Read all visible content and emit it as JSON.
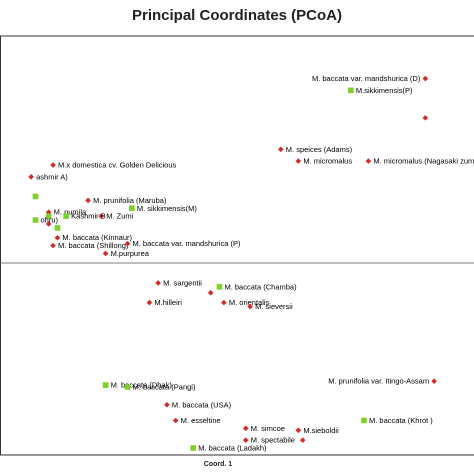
{
  "chart_data": {
    "type": "scatter",
    "title": "Principal Coordinates (PCoA)",
    "xlabel": "Coord. 1",
    "ylabel": "",
    "xlim": [
      -0.5,
      0.5
    ],
    "ylim": [
      -0.5,
      0.5
    ],
    "grid": false,
    "legend": "none",
    "colors": {
      "diamond": "#d42a2a",
      "square": "#7dd12a",
      "axis": "#555555",
      "frame": "#333333"
    },
    "points": [
      {
        "x": 0.43,
        "y": 0.44,
        "marker": "diamond",
        "label": "M. baccata var. mandshurica (D)"
      },
      {
        "x": 0.26,
        "y": 0.41,
        "marker": "square",
        "label": "M.sikkimensis(P)"
      },
      {
        "x": 0.43,
        "y": 0.34,
        "marker": "diamond",
        "label": ""
      },
      {
        "x": 0.1,
        "y": 0.26,
        "marker": "diamond",
        "label": "M. speices (Adams)"
      },
      {
        "x": 0.14,
        "y": 0.23,
        "marker": "diamond",
        "label": "M. micromalus"
      },
      {
        "x": 0.3,
        "y": 0.23,
        "marker": "diamond",
        "label": "M. micromalus (Nagasaki zumi)"
      },
      {
        "x": -0.42,
        "y": 0.22,
        "marker": "diamond",
        "label": "M.x domestica cv. Golden Delicious"
      },
      {
        "x": -0.47,
        "y": 0.19,
        "marker": "diamond",
        "label": "ashmir A)"
      },
      {
        "x": -0.46,
        "y": 0.14,
        "marker": "square",
        "label": ""
      },
      {
        "x": -0.34,
        "y": 0.13,
        "marker": "diamond",
        "label": "M. prunifolia (Maruba)"
      },
      {
        "x": -0.24,
        "y": 0.11,
        "marker": "square",
        "label": "M. sikkimensis(M)"
      },
      {
        "x": -0.31,
        "y": 0.09,
        "marker": "diamond",
        "label": "M. Zumi"
      },
      {
        "x": -0.43,
        "y": 0.1,
        "marker": "diamond",
        "label": "M. pumila"
      },
      {
        "x": -0.43,
        "y": 0.09,
        "marker": "square",
        "label": ""
      },
      {
        "x": -0.39,
        "y": 0.09,
        "marker": "square",
        "label": "Kashmir B"
      },
      {
        "x": -0.46,
        "y": 0.08,
        "marker": "square",
        "label": "ohru)"
      },
      {
        "x": -0.43,
        "y": 0.07,
        "marker": "diamond",
        "label": ""
      },
      {
        "x": -0.41,
        "y": 0.06,
        "marker": "square",
        "label": ""
      },
      {
        "x": -0.41,
        "y": 0.035,
        "marker": "diamond",
        "label": "M. baccata (Kinnaur)"
      },
      {
        "x": -0.42,
        "y": 0.015,
        "marker": "diamond",
        "label": "M. baccata (Shillong)"
      },
      {
        "x": -0.25,
        "y": 0.02,
        "marker": "diamond",
        "label": "M. baccata var. mandshurica (P)"
      },
      {
        "x": -0.3,
        "y": -0.005,
        "marker": "diamond",
        "label": "M.purpurea"
      },
      {
        "x": -0.18,
        "y": -0.08,
        "marker": "diamond",
        "label": "M. sargentii"
      },
      {
        "x": -0.04,
        "y": -0.09,
        "marker": "square",
        "label": "M. baccata (Chamba)"
      },
      {
        "x": -0.06,
        "y": -0.105,
        "marker": "diamond",
        "label": ""
      },
      {
        "x": -0.2,
        "y": -0.13,
        "marker": "diamond",
        "label": "M.hilleiri"
      },
      {
        "x": -0.03,
        "y": -0.13,
        "marker": "diamond",
        "label": "M. orientalis"
      },
      {
        "x": 0.03,
        "y": -0.14,
        "marker": "diamond",
        "label": "M. sieversii"
      },
      {
        "x": -0.3,
        "y": -0.34,
        "marker": "square",
        "label": "M. baccata (Dhak)"
      },
      {
        "x": -0.25,
        "y": -0.345,
        "marker": "square",
        "label": "M. baccata (Pangi)"
      },
      {
        "x": -0.16,
        "y": -0.39,
        "marker": "diamond",
        "label": "M. baccata (USA)"
      },
      {
        "x": 0.45,
        "y": -0.33,
        "marker": "diamond",
        "label": "M. prunifolia var. Itingo-Assam"
      },
      {
        "x": -0.14,
        "y": -0.43,
        "marker": "diamond",
        "label": "M. esseltine"
      },
      {
        "x": 0.29,
        "y": -0.43,
        "marker": "square",
        "label": "M. baccata (Khrot )"
      },
      {
        "x": 0.02,
        "y": -0.45,
        "marker": "diamond",
        "label": "M. simcoe"
      },
      {
        "x": 0.14,
        "y": -0.455,
        "marker": "diamond",
        "label": "M.sieboldii"
      },
      {
        "x": 0.02,
        "y": -0.48,
        "marker": "diamond",
        "label": "M. spectabile"
      },
      {
        "x": 0.15,
        "y": -0.48,
        "marker": "diamond",
        "label": ""
      },
      {
        "x": -0.1,
        "y": -0.5,
        "marker": "square",
        "label": "M. baccata (Ladakh)"
      }
    ]
  }
}
